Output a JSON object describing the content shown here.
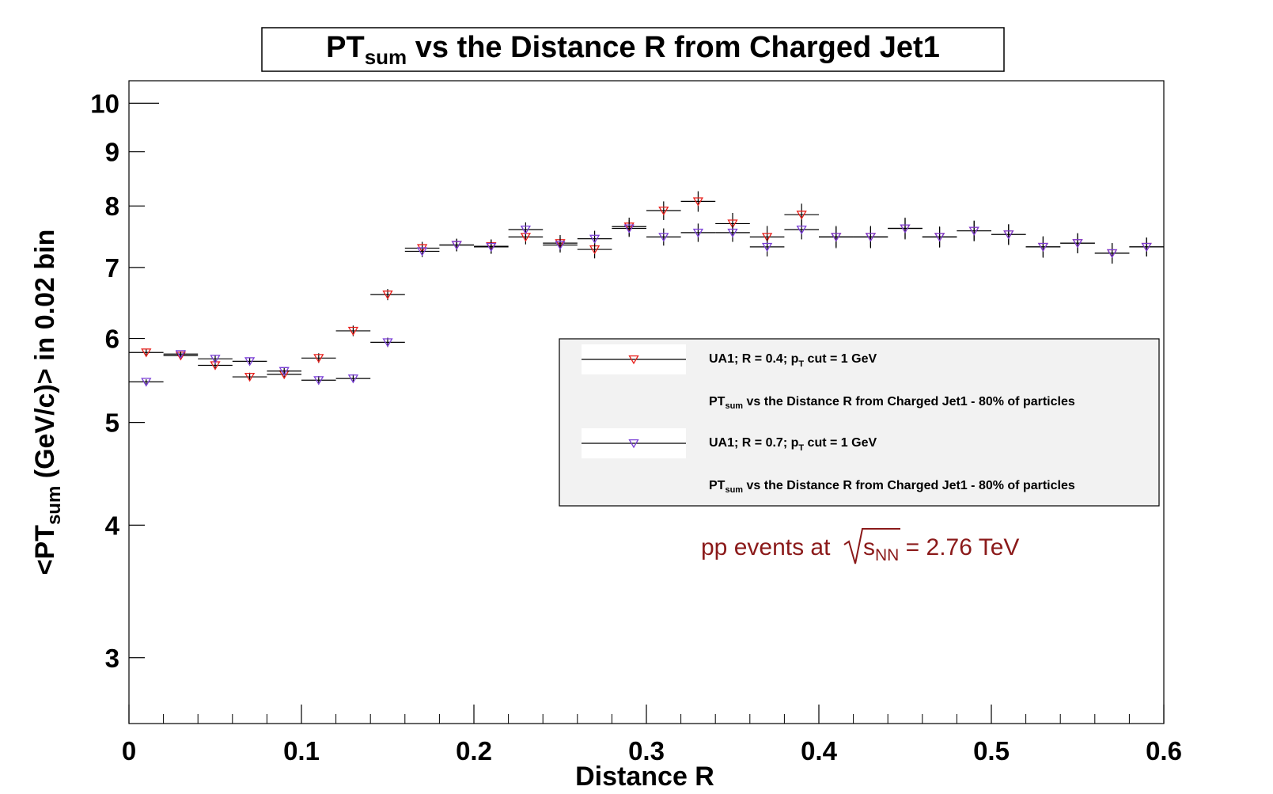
{
  "chart_data": {
    "type": "scatter",
    "title": {
      "main": "PT",
      "sub": "sum",
      "rest": " vs the Distance R from Charged Jet1"
    },
    "xlabel": "Distance R",
    "ylabel": {
      "pre": "<PT",
      "sub": "sum",
      "post": " (GeV/c)> in 0.02 bin"
    },
    "xlim": [
      0,
      0.6
    ],
    "ylim": [
      2.6,
      10.5
    ],
    "yscale": "log",
    "x_ticks": [
      0,
      0.1,
      0.2,
      0.3,
      0.4,
      0.5,
      0.6
    ],
    "x_tick_labels": [
      "0",
      "0.1",
      "0.2",
      "0.3",
      "0.4",
      "0.5",
      "0.6"
    ],
    "y_ticks": [
      3,
      4,
      5,
      6,
      7,
      8,
      9,
      10
    ],
    "y_tick_labels": [
      "3",
      "4",
      "5",
      "6",
      "7",
      "8",
      "9",
      "10"
    ],
    "bin_half_width": 0.01,
    "marker": "triangle-down",
    "series": [
      {
        "id": "r04",
        "color": "#e8201c",
        "legend": {
          "pre": "UA1; R = 0.4; p",
          "sub": "T",
          "post": " cut = 1 GeV"
        },
        "legend_note": {
          "pre": "PT",
          "sub": "sum",
          "post": " vs the Distance R from Charged Jet1 - 80% of particles"
        },
        "x": [
          0.01,
          0.03,
          0.05,
          0.07,
          0.09,
          0.11,
          0.13,
          0.15,
          0.17,
          0.19,
          0.21,
          0.23,
          0.25,
          0.27,
          0.29,
          0.31,
          0.33,
          0.35,
          0.37,
          0.39,
          0.41,
          0.43,
          0.45,
          0.47,
          0.49,
          0.51,
          0.53,
          0.55,
          0.57,
          0.59
        ],
        "y": [
          5.82,
          5.78,
          5.66,
          5.52,
          5.55,
          5.75,
          6.1,
          6.6,
          7.3,
          7.35,
          7.33,
          7.48,
          7.38,
          7.28,
          7.65,
          7.92,
          8.08,
          7.7,
          7.48,
          7.85,
          7.48,
          7.48,
          7.62,
          7.48,
          7.58,
          7.52,
          7.32,
          7.38,
          7.22,
          7.32
        ],
        "err": [
          0.04,
          0.04,
          0.05,
          0.05,
          0.05,
          0.06,
          0.07,
          0.08,
          0.1,
          0.1,
          0.11,
          0.12,
          0.13,
          0.14,
          0.15,
          0.16,
          0.18,
          0.18,
          0.18,
          0.19,
          0.18,
          0.18,
          0.18,
          0.17,
          0.17,
          0.17,
          0.17,
          0.16,
          0.16,
          0.15
        ]
      },
      {
        "id": "r07",
        "color": "#7a3fd6",
        "legend": {
          "pre": "UA1; R = 0.7; p",
          "sub": "T",
          "post": " cut = 1 GeV"
        },
        "legend_note": {
          "pre": "PT",
          "sub": "sum",
          "post": " vs the Distance R from Charged Jet1 - 80% of particles"
        },
        "x": [
          0.01,
          0.03,
          0.05,
          0.07,
          0.09,
          0.11,
          0.13,
          0.15,
          0.17,
          0.19,
          0.21,
          0.23,
          0.25,
          0.27,
          0.29,
          0.31,
          0.33,
          0.35,
          0.37,
          0.39,
          0.41,
          0.43,
          0.45,
          0.47,
          0.49,
          0.51,
          0.53,
          0.55,
          0.57,
          0.59
        ],
        "y": [
          5.46,
          5.8,
          5.74,
          5.71,
          5.59,
          5.48,
          5.5,
          5.95,
          7.25,
          7.35,
          7.32,
          7.6,
          7.35,
          7.45,
          7.62,
          7.48,
          7.55,
          7.55,
          7.32,
          7.6,
          7.48,
          7.48,
          7.62,
          7.48,
          7.58,
          7.52,
          7.32,
          7.38,
          7.22,
          7.32
        ],
        "err": [
          0.03,
          0.03,
          0.04,
          0.04,
          0.04,
          0.05,
          0.05,
          0.06,
          0.09,
          0.1,
          0.11,
          0.12,
          0.12,
          0.13,
          0.14,
          0.14,
          0.15,
          0.15,
          0.15,
          0.16,
          0.16,
          0.16,
          0.16,
          0.16,
          0.16,
          0.16,
          0.16,
          0.16,
          0.16,
          0.15
        ]
      }
    ],
    "annotation": {
      "pre": "pp events at ",
      "sqrt_base": "s",
      "sqrt_sub": "NN",
      "post": " = 2.76 TeV",
      "color": "#8b1a1a"
    },
    "legend_placement": "right-middle",
    "grid": false
  }
}
